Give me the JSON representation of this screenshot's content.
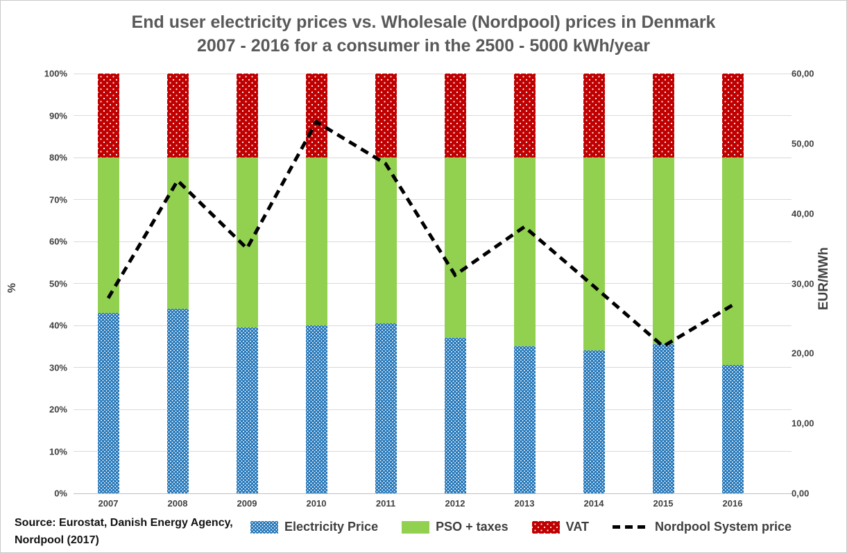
{
  "title": {
    "line1": "End user electricity prices vs. Wholesale (Nordpool) prices in Denmark",
    "line2": "2007 - 2016 for a consumer in the 2500 - 5000 kWh/year"
  },
  "source": {
    "line1": "Source: Eurostat, Danish Energy Agency,",
    "line2": "Nordpool (2017)"
  },
  "legend": [
    {
      "label": "Electricity Price",
      "swatch": "blue-dotted"
    },
    {
      "label": "PSO + taxes",
      "swatch": "green-solid"
    },
    {
      "label": "VAT",
      "swatch": "red-dotted"
    },
    {
      "label": "Nordpool System price",
      "swatch": "black-dashed-line"
    }
  ],
  "colors": {
    "electricity_blue": "#1f74b8",
    "pso_green": "#92d050",
    "vat_red": "#c00000",
    "line_black": "#000000",
    "title_gray": "#595959",
    "grid_gray": "#d9d9d9"
  },
  "chart_data": {
    "type": "bar",
    "subtype": "100%-stacked bars with dashed line overlay on secondary axis",
    "title": "End user electricity prices vs. Wholesale (Nordpool) prices in Denmark 2007 - 2016 for a consumer in the 2500 - 5000 kWh/year",
    "categories": [
      "2007",
      "2008",
      "2009",
      "2010",
      "2011",
      "2012",
      "2013",
      "2014",
      "2015",
      "2016"
    ],
    "series": [
      {
        "name": "Electricity Price",
        "type": "bar",
        "axis": "left",
        "unit": "%",
        "color": "#1f74b8",
        "pattern": "white-dots",
        "values": [
          43,
          44,
          39.5,
          40,
          40.5,
          37,
          35,
          34,
          35.5,
          30.5
        ]
      },
      {
        "name": "PSO + taxes",
        "type": "bar",
        "axis": "left",
        "unit": "%",
        "color": "#92d050",
        "pattern": "solid",
        "values": [
          37,
          36,
          40.5,
          40,
          39.5,
          43,
          45,
          46,
          44.5,
          49.5
        ]
      },
      {
        "name": "VAT",
        "type": "bar",
        "axis": "left",
        "unit": "%",
        "color": "#c00000",
        "pattern": "white-dots",
        "values": [
          20,
          20,
          20,
          20,
          20,
          20,
          20,
          20,
          20,
          20
        ]
      },
      {
        "name": "Nordpool System price",
        "type": "line",
        "axis": "right",
        "unit": "EUR/MWh",
        "color": "#000000",
        "dashed": true,
        "values": [
          27.9,
          44.7,
          35.0,
          53.1,
          47.1,
          31.2,
          38.1,
          29.6,
          21.0,
          26.9
        ]
      }
    ],
    "left_axis": {
      "label": "%",
      "min": 0,
      "max": 100,
      "ticks": [
        "0%",
        "10%",
        "20%",
        "30%",
        "40%",
        "50%",
        "60%",
        "70%",
        "80%",
        "90%",
        "100%"
      ]
    },
    "right_axis": {
      "label": "EUR/MWh",
      "min": 0,
      "max": 60,
      "ticks": [
        "0,00",
        "10,00",
        "20,00",
        "30,00",
        "40,00",
        "50,00",
        "60,00"
      ]
    },
    "grid": "horizontal-only",
    "legend_position": "bottom"
  }
}
